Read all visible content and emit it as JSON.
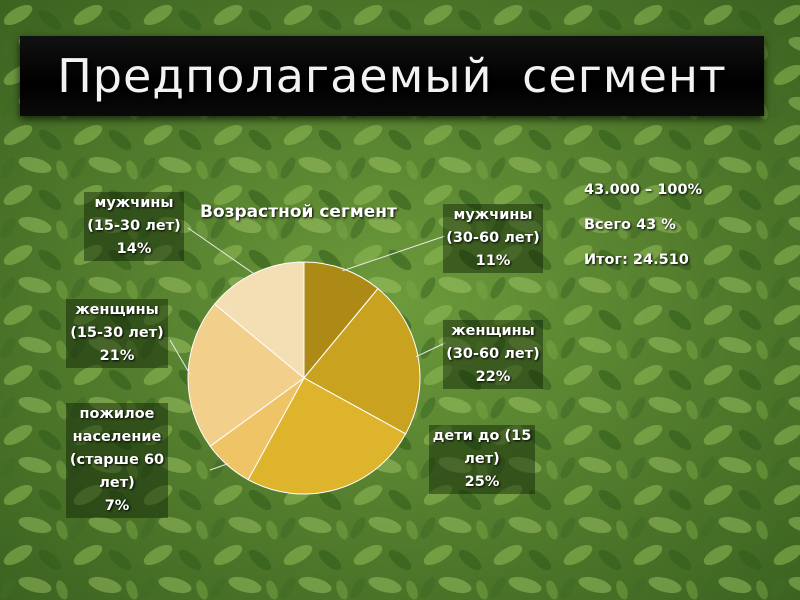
{
  "slide": {
    "title": "Предполагаемый  сегмент"
  },
  "stats": {
    "line1": "43.000 – 100%",
    "line2": "Всего 43 %",
    "line3": "Итог: 24.510"
  },
  "chart_data": {
    "type": "pie",
    "title": "Возрастной сегмент",
    "start_angle_deg": 0,
    "direction": "clockwise",
    "slices": [
      {
        "label_lines": [
          "мужчины",
          "(30-60 лет)"
        ],
        "percent_label": "11%",
        "value": 11,
        "color": "#ad8a16"
      },
      {
        "label_lines": [
          "женщины",
          "(30-60 лет)"
        ],
        "percent_label": "22%",
        "value": 22,
        "color": "#c9a21f"
      },
      {
        "label_lines": [
          "дети до (15",
          "лет)"
        ],
        "percent_label": "25%",
        "value": 25,
        "color": "#ddb42c"
      },
      {
        "label_lines": [
          "пожилое",
          "население",
          "(старше 60",
          "лет)"
        ],
        "percent_label": "7%",
        "value": 7,
        "color": "#eec466"
      },
      {
        "label_lines": [
          "женщины",
          "(15-30 лет)"
        ],
        "percent_label": "21%",
        "value": 21,
        "color": "#f2d08c"
      },
      {
        "label_lines": [
          "мужчины",
          "(15-30 лет)"
        ],
        "percent_label": "14%",
        "value": 14,
        "color": "#f4dfb4"
      }
    ]
  }
}
